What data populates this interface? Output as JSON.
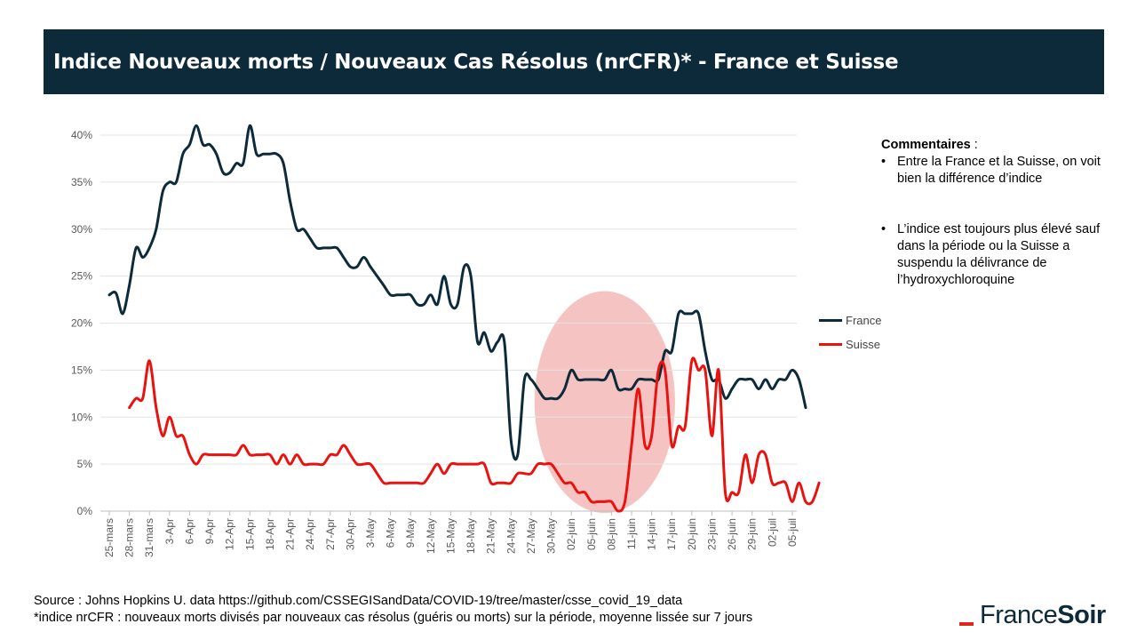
{
  "title": "Indice Nouveaux morts / Nouveaux Cas Résolus (nrCFR)*  - France et Suisse",
  "comments": {
    "heading": "Commentaires",
    "heading_suffix": " :",
    "items": [
      "Entre la France et la Suisse, on voit bien la différence d’indice",
      "L’indice est toujours plus élevé sauf dans la période ou la Suisse a suspendu la délivrance de l’hydroxychloroquine"
    ]
  },
  "footer": {
    "source": "Source : Johns Hopkins U. data https://github.com/CSSEGISandData/COVID-19/tree/master/csse_covid_19_data",
    "note": "*indice nrCFR : nouveaux  morts divisés par nouveaux  cas résolus (guéris ou morts) sur la période, moyenne lissée sur 7 jours"
  },
  "logo": {
    "part1": "France",
    "part2": "Soir",
    "accent_color": "#e1251b"
  },
  "chart_data": {
    "type": "line",
    "x_tick_labels": [
      "25-mars",
      "28-mars",
      "31-mars",
      "3-Apr",
      "6-Apr",
      "9-Apr",
      "12-Apr",
      "15-Apr",
      "18-Apr",
      "21-Apr",
      "24-Apr",
      "27-Apr",
      "30-Apr",
      "3-May",
      "6-May",
      "9-May",
      "12-May",
      "15-May",
      "18-May",
      "21-May",
      "24-May",
      "27-May",
      "30-May",
      "02-juin",
      "05-juin",
      "08-juin",
      "11-juin",
      "14-juin",
      "17-juin",
      "20-juin",
      "23-juin",
      "26-juin",
      "29-juin",
      "02-juil",
      "05-juil"
    ],
    "tick_every_days": 3,
    "y_ticks": [
      "0%",
      "5%",
      "10%",
      "15%",
      "20%",
      "25%",
      "30%",
      "35%",
      "40%"
    ],
    "ylim": [
      0,
      40
    ],
    "grid": true,
    "legend_position": "right",
    "highlight_ellipse": {
      "x_center_day": 74,
      "x_half_width_days": 10.5,
      "y_center": 11.6,
      "y_half_height": 11.8,
      "color": "#f4b8b8"
    },
    "series": [
      {
        "name": "France",
        "color": "#0d2a3a",
        "start_day": 0,
        "values": [
          23,
          23.2,
          21,
          24,
          28,
          27,
          28,
          30,
          34,
          35,
          35,
          38,
          39,
          41,
          39,
          39,
          38,
          36,
          36,
          37,
          37,
          41,
          38,
          38,
          38,
          38,
          37,
          33,
          30,
          30,
          29,
          28,
          28,
          28,
          28,
          27,
          26,
          26,
          27,
          26,
          25,
          24,
          23,
          23,
          23,
          23,
          22,
          22,
          23,
          22,
          25,
          22,
          22,
          26,
          25,
          18,
          19,
          17,
          18,
          18,
          7.5,
          6,
          14,
          14,
          13,
          12,
          12,
          12,
          13,
          15,
          14,
          14,
          14,
          14,
          14,
          15,
          13,
          13,
          13,
          14,
          14,
          14,
          14,
          17,
          17,
          21,
          21,
          21,
          21,
          17,
          14,
          14,
          12,
          13,
          14,
          14,
          14,
          13,
          14,
          13,
          14,
          14,
          15,
          14,
          11
        ]
      },
      {
        "name": "Suisse",
        "color": "#e8130f",
        "start_day": 3,
        "values": [
          11,
          12,
          12,
          16,
          11,
          8,
          10,
          8,
          8,
          6,
          5,
          6,
          6,
          6,
          6,
          6,
          6,
          7,
          6,
          6,
          6,
          6,
          5,
          6,
          5,
          6,
          5,
          5,
          5,
          5,
          6,
          6,
          7,
          6,
          5,
          5,
          5,
          4,
          3,
          3,
          3,
          3,
          3,
          3,
          3,
          4,
          5,
          4,
          5,
          5,
          5,
          5,
          5,
          5,
          3,
          3,
          3,
          3,
          4,
          4,
          4,
          5,
          5,
          5,
          4,
          3,
          3,
          2,
          2,
          1,
          1,
          1,
          1,
          0,
          1,
          7,
          13,
          7,
          8,
          15,
          15,
          7,
          9,
          9,
          16,
          15,
          15,
          8,
          15,
          2,
          2,
          2,
          6,
          3,
          6,
          6,
          3,
          3,
          3,
          1,
          3,
          1,
          1,
          3
        ]
      }
    ]
  }
}
